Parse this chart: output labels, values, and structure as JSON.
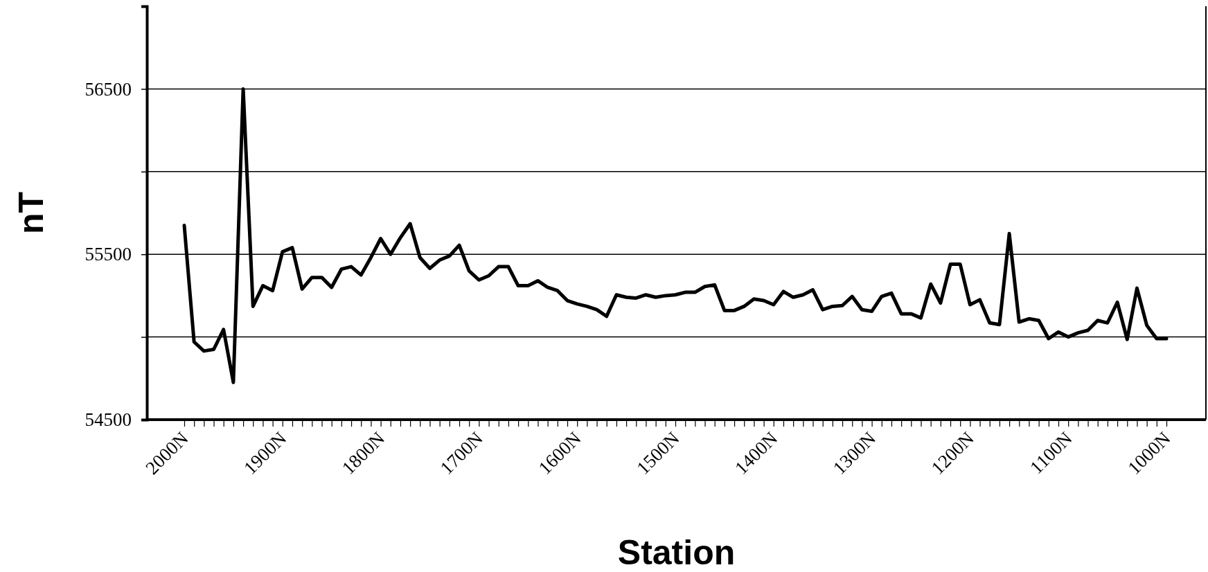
{
  "chart_data": {
    "type": "line",
    "xlabel": "Station",
    "ylabel": "nT",
    "categories": [
      "2000N",
      null,
      null,
      null,
      null,
      null,
      null,
      null,
      null,
      null,
      "1900N",
      null,
      null,
      null,
      null,
      null,
      null,
      null,
      null,
      null,
      "1800N",
      null,
      null,
      null,
      null,
      null,
      null,
      null,
      null,
      null,
      "1700N",
      null,
      null,
      null,
      null,
      null,
      null,
      null,
      null,
      null,
      "1600N",
      null,
      null,
      null,
      null,
      null,
      null,
      null,
      null,
      null,
      "1500N",
      null,
      null,
      null,
      null,
      null,
      null,
      null,
      null,
      null,
      "1400N",
      null,
      null,
      null,
      null,
      null,
      null,
      null,
      null,
      null,
      "1300N",
      null,
      null,
      null,
      null,
      null,
      null,
      null,
      null,
      null,
      "1200N",
      null,
      null,
      null,
      null,
      null,
      null,
      null,
      null,
      null,
      "1100N",
      null,
      null,
      null,
      null,
      null,
      null,
      null,
      null,
      null,
      "1000N"
    ],
    "series": [
      {
        "color": "#000000",
        "values": [
          55675,
          54970,
          54915,
          54925,
          55045,
          54725,
          56500,
          55185,
          55310,
          55280,
          55515,
          55540,
          55290,
          55360,
          55360,
          55300,
          55410,
          55425,
          55375,
          55480,
          55595,
          55500,
          55600,
          55685,
          55480,
          55415,
          55465,
          55490,
          55555,
          55400,
          55345,
          55370,
          55425,
          55425,
          55310,
          55310,
          55340,
          55300,
          55280,
          55220,
          55200,
          55185,
          55165,
          55125,
          55255,
          55240,
          55235,
          55255,
          55240,
          55250,
          55255,
          55270,
          55270,
          55305,
          55315,
          55160,
          55160,
          55185,
          55230,
          55220,
          55195,
          55275,
          55240,
          55255,
          55285,
          55165,
          55185,
          55190,
          55245,
          55165,
          55155,
          55245,
          55265,
          55140,
          55140,
          55115,
          55320,
          55205,
          55440,
          55440,
          55195,
          55225,
          55085,
          55075,
          55625,
          55090,
          55110,
          55100,
          54990,
          55030,
          55000,
          55025,
          55040,
          55100,
          55085,
          55210,
          54985,
          55295,
          55070,
          54990,
          54990
        ]
      }
    ],
    "ylim": [
      54500,
      57000
    ],
    "yticks": [
      54500,
      {
        "value": 55000,
        "label": null
      },
      55500,
      {
        "value": 56000,
        "label": null
      },
      56500
    ],
    "grid": "y",
    "marker": "none",
    "line_style": "solid"
  }
}
